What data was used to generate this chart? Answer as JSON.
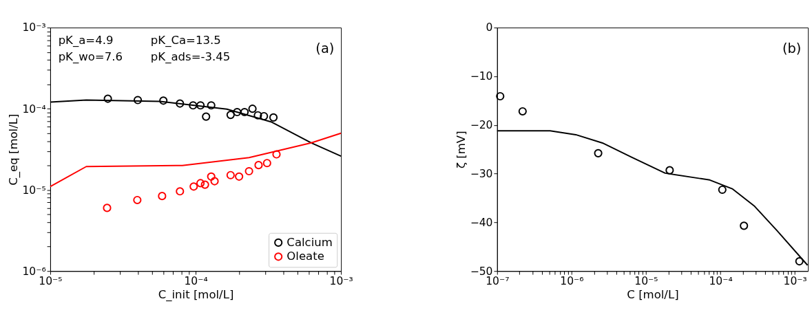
{
  "chart_data": [
    {
      "type": "scatter",
      "xlabel": "C_init [mol/L]",
      "ylabel": "C_eq [mol/L]",
      "log": "xy",
      "grid": false,
      "legend": "bottom right",
      "marker": "circle",
      "annotations": [
        "pK_a=4.9",
        "pK_Ca=13.5",
        "pK_wo=7.6",
        "pK_ads=-3.45",
        "(a)"
      ],
      "xlim": [
        1e-05,
        0.001
      ],
      "ylim": [
        1e-06,
        0.001
      ],
      "xticks": [
        {
          "value": 1e-05,
          "label": "10⁻⁵"
        },
        {
          "value": 2e-05,
          "label": null
        },
        {
          "value": 3e-05,
          "label": null
        },
        {
          "value": 4e-05,
          "label": null
        },
        {
          "value": 5e-05,
          "label": null
        },
        {
          "value": 6e-05,
          "label": null
        },
        {
          "value": 7e-05,
          "label": null
        },
        {
          "value": 8e-05,
          "label": null
        },
        {
          "value": 9e-05,
          "label": null
        },
        {
          "value": 0.0001,
          "label": "10⁻⁴"
        },
        {
          "value": 0.0002,
          "label": null
        },
        {
          "value": 0.0003,
          "label": null
        },
        {
          "value": 0.0004,
          "label": null
        },
        {
          "value": 0.0005,
          "label": null
        },
        {
          "value": 0.0006,
          "label": null
        },
        {
          "value": 0.0007,
          "label": null
        },
        {
          "value": 0.0008,
          "label": null
        },
        {
          "value": 0.0009,
          "label": null
        },
        {
          "value": 0.001,
          "label": "10⁻³"
        }
      ],
      "yticks": [
        {
          "value": 1e-06,
          "label": "10⁻⁶"
        },
        {
          "value": 2e-06,
          "label": null
        },
        {
          "value": 3e-06,
          "label": null
        },
        {
          "value": 4e-06,
          "label": null
        },
        {
          "value": 5e-06,
          "label": null
        },
        {
          "value": 6e-06,
          "label": null
        },
        {
          "value": 7e-06,
          "label": null
        },
        {
          "value": 8e-06,
          "label": null
        },
        {
          "value": 9e-06,
          "label": null
        },
        {
          "value": 1e-05,
          "label": "10⁻⁵"
        },
        {
          "value": 2e-05,
          "label": null
        },
        {
          "value": 3e-05,
          "label": null
        },
        {
          "value": 4e-05,
          "label": null
        },
        {
          "value": 5e-05,
          "label": null
        },
        {
          "value": 6e-05,
          "label": null
        },
        {
          "value": 7e-05,
          "label": null
        },
        {
          "value": 8e-05,
          "label": null
        },
        {
          "value": 9e-05,
          "label": null
        },
        {
          "value": 0.0001,
          "label": "10⁻⁴"
        },
        {
          "value": 0.0002,
          "label": null
        },
        {
          "value": 0.0003,
          "label": null
        },
        {
          "value": 0.0004,
          "label": null
        },
        {
          "value": 0.0005,
          "label": null
        },
        {
          "value": 0.0006,
          "label": null
        },
        {
          "value": 0.0007,
          "label": null
        },
        {
          "value": 0.0008,
          "label": null
        },
        {
          "value": 0.0009,
          "label": null
        },
        {
          "value": 0.001,
          "label": "10⁻³"
        }
      ],
      "series": [
        {
          "name": "Calcium",
          "color": "#000000",
          "x": [
            2.49e-05,
            4e-05,
            6e-05,
            7.8e-05,
            9.6e-05,
            0.000108,
            0.000118,
            0.000128,
            0.000174,
            0.000193,
            0.000217,
            0.000246,
            0.000268,
            0.000295,
            0.000343
          ],
          "values": [
            0.000133,
            0.000128,
            0.000126,
            0.000116,
            0.00011,
            0.00011,
            8e-05,
            0.00011,
            8.4e-05,
            9.1e-05,
            9.1e-05,
            0.0001,
            8.3e-05,
            8.1e-05,
            7.8e-05
          ]
        },
        {
          "name": "Oleate",
          "color": "#ff0000",
          "x": [
            2.46e-05,
            3.97e-05,
            5.88e-05,
            7.8e-05,
            9.7e-05,
            0.000108,
            0.000116,
            0.000128,
            0.000135,
            0.000174,
            0.000199,
            0.000233,
            0.000271,
            0.00031,
            0.00036
          ],
          "values": [
            6e-06,
            7.5e-06,
            8.4e-06,
            9.6e-06,
            1.1e-05,
            1.21e-05,
            1.16e-05,
            1.46e-05,
            1.28e-05,
            1.52e-05,
            1.46e-05,
            1.7e-05,
            2.02e-05,
            2.14e-05,
            2.74e-05
          ]
        },
        {
          "type": "line",
          "marker": "none",
          "color": "#000000",
          "x": [
            1e-05,
            1.77e-05,
            5.7e-05,
            0.000164,
            0.00033,
            0.000625,
            0.001
          ],
          "values": [
            0.000121,
            0.000128,
            0.000123,
            9.9e-05,
            6.9e-05,
            3.8e-05,
            2.6e-05
          ]
        },
        {
          "type": "line",
          "marker": "none",
          "color": "#ff0000",
          "x": [
            1e-05,
            1.77e-05,
            8.1e-05,
            0.000233,
            0.000625,
            0.001
          ],
          "values": [
            1.1e-05,
            1.94e-05,
            2e-05,
            2.5e-05,
            3.8e-05,
            5e-05
          ]
        }
      ]
    },
    {
      "type": "scatter",
      "xlabel": "C [mol/L]",
      "ylabel": "ζ [mV]",
      "log": "x",
      "grid": false,
      "marker": "circle",
      "annotations": [
        "(b)"
      ],
      "xlim": [
        1e-07,
        0.0015
      ],
      "ylim": [
        -50,
        0
      ],
      "xticks": [
        {
          "value": 1e-07,
          "label": "10⁻⁷"
        },
        {
          "value": 2e-07,
          "label": null
        },
        {
          "value": 3e-07,
          "label": null
        },
        {
          "value": 4e-07,
          "label": null
        },
        {
          "value": 5e-07,
          "label": null
        },
        {
          "value": 6e-07,
          "label": null
        },
        {
          "value": 7e-07,
          "label": null
        },
        {
          "value": 8e-07,
          "label": null
        },
        {
          "value": 9e-07,
          "label": null
        },
        {
          "value": 1e-06,
          "label": "10⁻⁶"
        },
        {
          "value": 2e-06,
          "label": null
        },
        {
          "value": 3e-06,
          "label": null
        },
        {
          "value": 4e-06,
          "label": null
        },
        {
          "value": 5e-06,
          "label": null
        },
        {
          "value": 6e-06,
          "label": null
        },
        {
          "value": 7e-06,
          "label": null
        },
        {
          "value": 8e-06,
          "label": null
        },
        {
          "value": 9e-06,
          "label": null
        },
        {
          "value": 1e-05,
          "label": "10⁻⁵"
        },
        {
          "value": 2e-05,
          "label": null
        },
        {
          "value": 3e-05,
          "label": null
        },
        {
          "value": 4e-05,
          "label": null
        },
        {
          "value": 5e-05,
          "label": null
        },
        {
          "value": 6e-05,
          "label": null
        },
        {
          "value": 7e-05,
          "label": null
        },
        {
          "value": 8e-05,
          "label": null
        },
        {
          "value": 9e-05,
          "label": null
        },
        {
          "value": 0.0001,
          "label": "10⁻⁴"
        },
        {
          "value": 0.0002,
          "label": null
        },
        {
          "value": 0.0003,
          "label": null
        },
        {
          "value": 0.0004,
          "label": null
        },
        {
          "value": 0.0005,
          "label": null
        },
        {
          "value": 0.0006,
          "label": null
        },
        {
          "value": 0.0007,
          "label": null
        },
        {
          "value": 0.0008,
          "label": null
        },
        {
          "value": 0.0009,
          "label": null
        },
        {
          "value": 0.001,
          "label": "10⁻³"
        }
      ],
      "yticks": [
        0,
        -10,
        -20,
        -30,
        -40,
        -50
      ],
      "series": [
        {
          "color": "#000000",
          "x": [
            1.1e-07,
            2.2e-07,
            2.28e-06,
            2.08e-05,
            0.000106,
            0.000207,
            0.00115
          ],
          "values": [
            -14.1,
            -17.2,
            -25.8,
            -29.3,
            -33.3,
            -40.7,
            -48.0
          ]
        },
        {
          "type": "line",
          "marker": "none",
          "color": "#000000",
          "x": [
            1e-07,
            5.15e-07,
            1.14e-06,
            2.6e-06,
            6.4e-06,
            1.81e-05,
            7.2e-05,
            0.000144,
            0.000288,
            0.000575,
            0.00148
          ],
          "values": [
            -21.2,
            -21.2,
            -22.0,
            -23.7,
            -26.6,
            -29.9,
            -31.3,
            -33.1,
            -36.7,
            -41.7,
            -48.8
          ]
        }
      ]
    }
  ]
}
